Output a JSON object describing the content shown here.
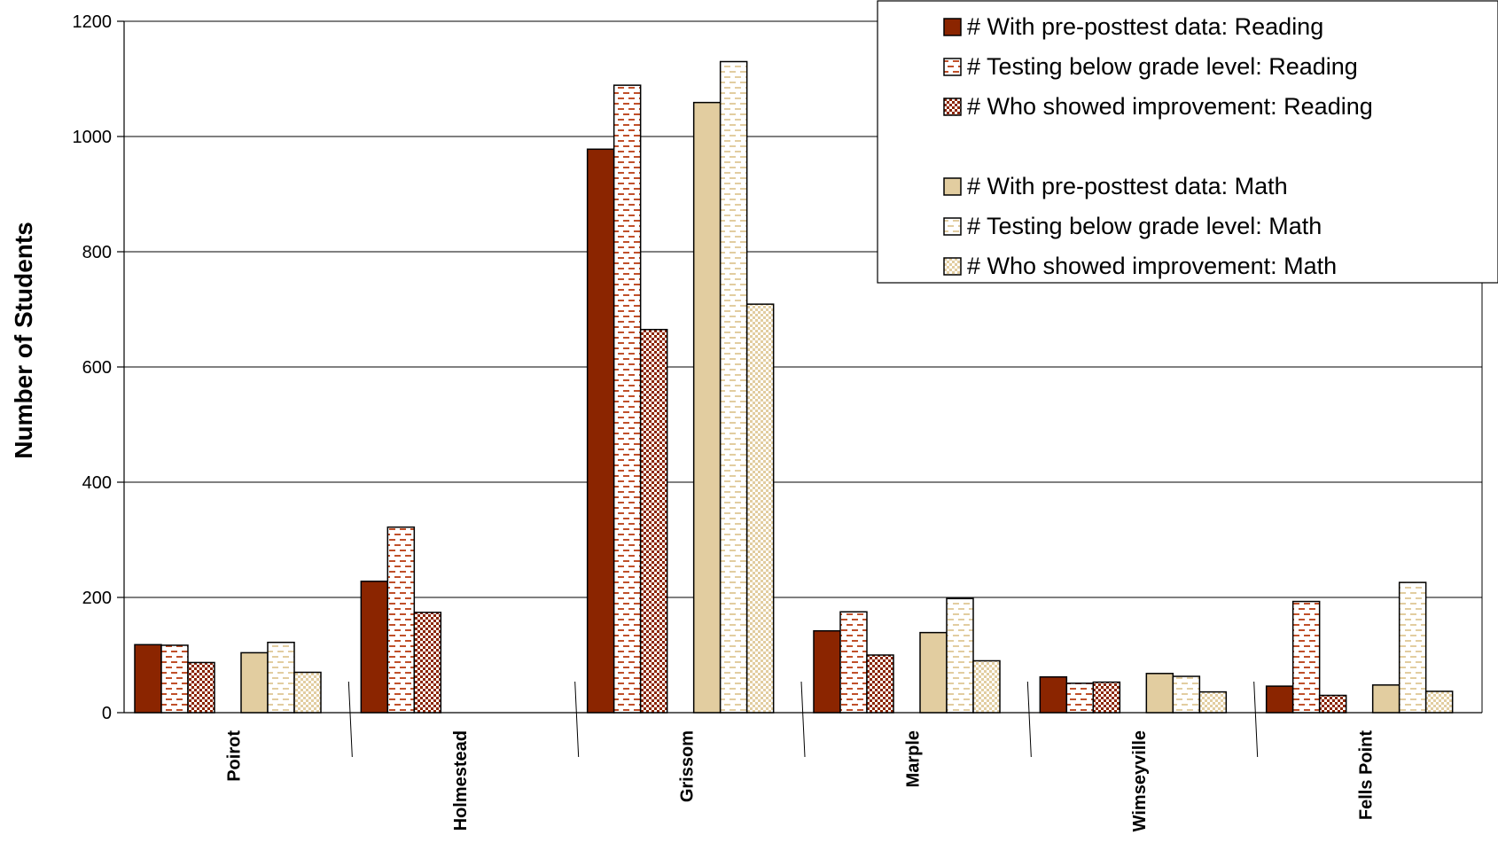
{
  "chart_data": {
    "type": "bar",
    "ylabel": "Number of Students",
    "xlabel": "",
    "ylim": [
      0,
      1200
    ],
    "yticks": [
      0,
      200,
      400,
      600,
      800,
      1000,
      1200
    ],
    "grid": true,
    "legend_position": "top-right",
    "categories": [
      "Poirot",
      "Holmestead",
      "Grissom",
      "Marple",
      "Wimseyville",
      "Fells Point"
    ],
    "series": [
      {
        "name": "# With pre-posttest data: Reading",
        "color": "#8B2500",
        "pattern": "solid",
        "values": [
          118,
          228,
          978,
          142,
          62,
          46
        ]
      },
      {
        "name": "# Testing below grade level: Reading",
        "color": "#C0502A",
        "pattern": "dash",
        "values": [
          117,
          322,
          1089,
          175,
          51,
          193
        ]
      },
      {
        "name": "# Who showed improvement: Reading",
        "color": "#8B2500",
        "pattern": "check",
        "values": [
          87,
          174,
          665,
          100,
          53,
          30
        ]
      },
      {
        "name": "# With pre-posttest data: Math",
        "color": "#E2CDA0",
        "pattern": "solid",
        "values": [
          104,
          null,
          1059,
          139,
          68,
          48
        ]
      },
      {
        "name": "# Testing below grade level: Math",
        "color": "#E2CDA0",
        "pattern": "dash",
        "values": [
          122,
          null,
          1130,
          198,
          63,
          226
        ]
      },
      {
        "name": "# Who showed improvement: Math",
        "color": "#E2CDA0",
        "pattern": "check",
        "values": [
          70,
          null,
          709,
          90,
          36,
          37
        ]
      }
    ]
  }
}
